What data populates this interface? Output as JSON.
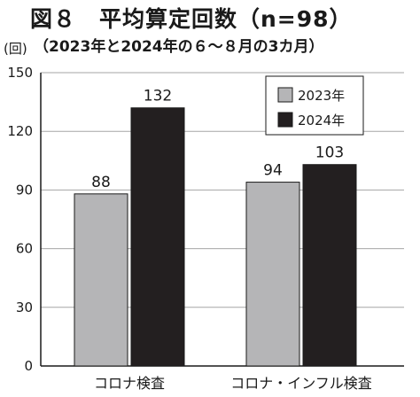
{
  "header": {
    "title": "図８　平均算定回数（n=98）",
    "subtitle": "（2023年と2024年の６～８月の3カ月）",
    "unit": "(回)"
  },
  "colors": {
    "series_2023": "#b5b5b7",
    "series_2024": "#231f20",
    "grid": "#a6a6a6",
    "axis": "#1a1a1a"
  },
  "chart_data": {
    "type": "bar",
    "categories": [
      "コロナ検査",
      "コロナ・インフル検査"
    ],
    "series": [
      {
        "name": "2023年",
        "values": [
          88,
          94
        ]
      },
      {
        "name": "2024年",
        "values": [
          132,
          103
        ]
      }
    ],
    "ylim": [
      0,
      150
    ],
    "yticks": [
      0,
      30,
      60,
      90,
      120,
      150
    ],
    "ylabel": "(回)",
    "grid": true,
    "legend": "top-right"
  }
}
